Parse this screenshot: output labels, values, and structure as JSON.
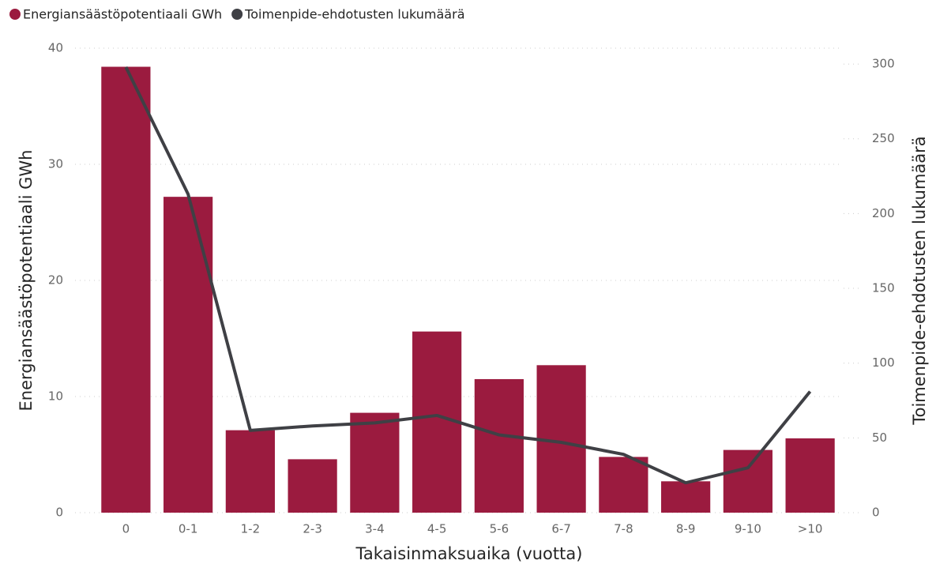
{
  "chart_data": {
    "type": "combo",
    "categories": [
      "0",
      "0-1",
      "1-2",
      "2-3",
      "3-4",
      "4-5",
      "5-6",
      "6-7",
      "7-8",
      "8-9",
      "9-10",
      ">10"
    ],
    "series": [
      {
        "name": "Energiansäästöpotentiaali GWh",
        "type": "bar",
        "color": "#9b1b3f",
        "axis": "y",
        "values": [
          38.4,
          27.2,
          7.1,
          4.6,
          8.6,
          15.6,
          11.5,
          12.7,
          4.8,
          2.7,
          5.4,
          6.4
        ]
      },
      {
        "name": "Toimenpide-ehdotusten lukumäärä",
        "type": "line",
        "color": "#3f4045",
        "axis": "y2",
        "values": [
          298,
          213,
          55,
          58,
          60,
          65,
          52,
          47,
          39,
          20,
          30,
          81
        ]
      }
    ],
    "xlabel": "Takaisinmaksuaika (vuotta)",
    "ylabel": "Energiansäästöpotentiaali GWh",
    "y2label": "Toimenpide-ehdotusten lukumäärä",
    "ylim": [
      0,
      40
    ],
    "yticks": [
      0,
      10,
      20,
      30,
      40
    ],
    "y2lim": [
      0,
      310.6
    ],
    "y2ticks": [
      0,
      50,
      100,
      150,
      200,
      250,
      300
    ],
    "grid": true,
    "legend": "top-left"
  }
}
